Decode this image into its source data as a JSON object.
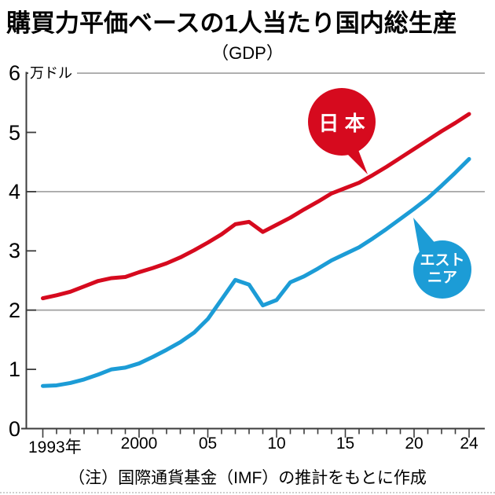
{
  "title": "購買力平価ベースの1人当たり国内総生産",
  "subtitle": "（GDP）",
  "note": "（注）国際通貨基金（IMF）の推計をもとに作成",
  "colors": {
    "japan_red": "#d60a1e",
    "estonia_blue": "#1c9cd6",
    "grid_gray": "#a6a6a6",
    "axis_dark": "#3c3c3c"
  },
  "annotations": {
    "japan_label": "日 本",
    "estonia_label_line1": "エスト",
    "estonia_label_line2": "ニア"
  },
  "chart_data": {
    "type": "line",
    "title": "購買力平価ベースの1人当たり国内総生産（GDP）",
    "ylabel": "万ドル",
    "ylim": [
      0,
      6
    ],
    "y_ticks": [
      0,
      1,
      2,
      3,
      4,
      5,
      6
    ],
    "grid_y": [
      2,
      4,
      6
    ],
    "x": [
      1993,
      1994,
      1995,
      1996,
      1997,
      1998,
      1999,
      2000,
      2001,
      2002,
      2003,
      2004,
      2005,
      2006,
      2007,
      2008,
      2009,
      2010,
      2011,
      2012,
      2013,
      2014,
      2015,
      2016,
      2017,
      2018,
      2019,
      2020,
      2021,
      2022,
      2023,
      2024
    ],
    "series": [
      {
        "name": "日本",
        "color_key": "japan_red",
        "values": [
          2.2,
          2.25,
          2.31,
          2.4,
          2.49,
          2.54,
          2.56,
          2.64,
          2.71,
          2.79,
          2.89,
          3.01,
          3.14,
          3.28,
          3.45,
          3.49,
          3.32,
          3.44,
          3.56,
          3.7,
          3.83,
          3.97,
          4.06,
          4.15,
          4.28,
          4.42,
          4.57,
          4.72,
          4.87,
          5.02,
          5.16,
          5.31
        ]
      },
      {
        "name": "エストニア",
        "color_key": "estonia_blue",
        "values": [
          0.72,
          0.73,
          0.77,
          0.83,
          0.91,
          1.0,
          1.03,
          1.1,
          1.21,
          1.33,
          1.46,
          1.62,
          1.85,
          2.18,
          2.51,
          2.43,
          2.08,
          2.17,
          2.47,
          2.57,
          2.7,
          2.84,
          2.95,
          3.06,
          3.21,
          3.37,
          3.54,
          3.71,
          3.89,
          4.1,
          4.32,
          4.55
        ]
      }
    ],
    "x_tick_labels": [
      {
        "label": "1993年",
        "year": 1993
      },
      {
        "label": "2000",
        "year": 2000
      },
      {
        "label": "05",
        "year": 2005
      },
      {
        "label": "10",
        "year": 2010
      },
      {
        "label": "15",
        "year": 2015
      },
      {
        "label": "20",
        "year": 2020
      },
      {
        "label": "24",
        "year": 2024
      }
    ],
    "major_tick_years": [
      1993,
      2000,
      2005,
      2010,
      2015,
      2020,
      2024
    ],
    "legend_position": "annotated-balloons",
    "grid": "horizontal-only"
  }
}
